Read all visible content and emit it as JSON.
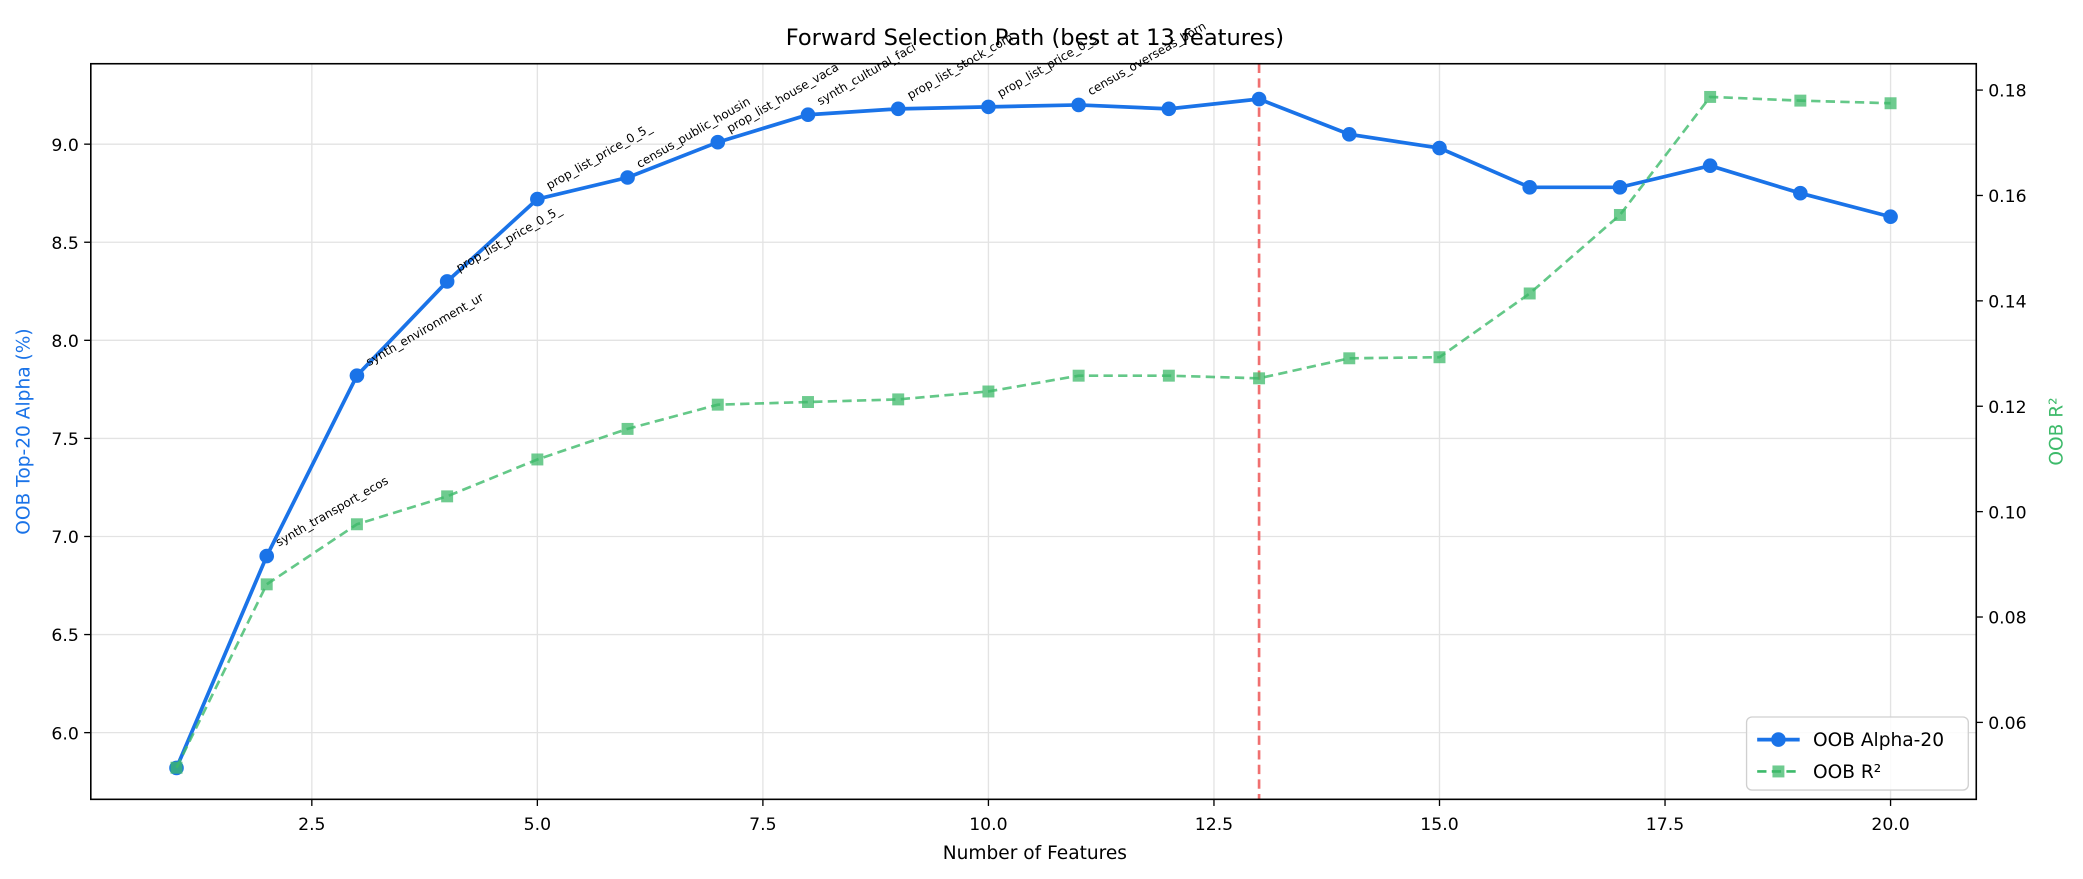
{
  "chart_data": {
    "type": "line",
    "title": "Forward Selection Path (best at 13 features)",
    "xlabel": "Number of Features",
    "ylabel": "OOB Top-20 Alpha (%)",
    "y2label": "OOB R²",
    "x": [
      1,
      2,
      3,
      4,
      5,
      6,
      7,
      8,
      9,
      10,
      11,
      12,
      13,
      14,
      15,
      16,
      17,
      18,
      19,
      20
    ],
    "series": [
      {
        "name": "OOB Alpha-20",
        "color": "#1a73e8",
        "marker": "circle",
        "linestyle": "solid",
        "axis": "y",
        "values": [
          5.82,
          6.9,
          7.82,
          8.3,
          8.72,
          8.83,
          9.01,
          9.15,
          9.18,
          9.19,
          9.2,
          9.18,
          9.23,
          9.05,
          8.98,
          8.78,
          8.78,
          8.89,
          8.75,
          8.63
        ]
      },
      {
        "name": "OOB R²",
        "color": "#3dba6a",
        "marker": "square",
        "linestyle": "dashed",
        "axis": "y2",
        "values": [
          0.0514,
          0.0862,
          0.0976,
          0.1029,
          0.1099,
          0.1157,
          0.1203,
          0.1208,
          0.1213,
          0.1228,
          0.1258,
          0.1258,
          0.1253,
          0.1291,
          0.1293,
          0.1414,
          0.1563,
          0.1787,
          0.178,
          0.1775
        ]
      }
    ],
    "annotations": [
      {
        "x": 2,
        "text": "synth_transport_ecos"
      },
      {
        "x": 3,
        "text": "synth_environment_ur"
      },
      {
        "x": 4,
        "text": "prop_list_price_0_5_"
      },
      {
        "x": 5,
        "text": "prop_list_price_0_5_"
      },
      {
        "x": 6,
        "text": "census_public_housin"
      },
      {
        "x": 7,
        "text": "prop_list_house_vaca"
      },
      {
        "x": 8,
        "text": "synth_cultural_faci"
      },
      {
        "x": 9,
        "text": "prop_list_stock_com"
      },
      {
        "x": 10,
        "text": "prop_list_price_0_5"
      },
      {
        "x": 11,
        "text": "census_overseas_born"
      }
    ],
    "vline": {
      "x": 13,
      "color": "#f07070"
    },
    "xlim": [
      0.05,
      20.95
    ],
    "xticks": [
      2.5,
      {
        "value": 5,
        "label": "5.0"
      },
      7.5,
      {
        "value": 10,
        "label": "10.0"
      },
      12.5,
      {
        "value": 15,
        "label": "15.0"
      },
      17.5,
      {
        "value": 20,
        "label": "20.0"
      }
    ],
    "ylim": [
      5.66,
      9.41
    ],
    "yticks": [
      {
        "value": 6,
        "label": "6.0"
      },
      6.5,
      {
        "value": 7,
        "label": "7.0"
      },
      7.5,
      {
        "value": 8,
        "label": "8.0"
      },
      8.5,
      {
        "value": 9,
        "label": "9.0"
      }
    ],
    "y2lim": [
      0.0454,
      0.185
    ],
    "y2ticks": [
      0.06,
      0.08,
      {
        "value": 0.1,
        "label": "0.10"
      },
      0.12,
      0.14,
      0.16,
      0.18
    ],
    "grid": true,
    "legend": "lower right"
  }
}
